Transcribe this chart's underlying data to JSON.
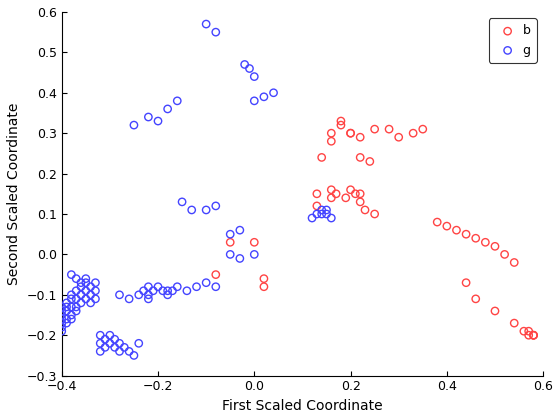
{
  "title": "",
  "xlabel": "First Scaled Coordinate",
  "ylabel": "Second Scaled Coordinate",
  "xlim": [
    -0.4,
    0.6
  ],
  "ylim": [
    -0.3,
    0.6
  ],
  "xticks": [
    -0.4,
    -0.2,
    0.0,
    0.2,
    0.4,
    0.6
  ],
  "yticks": [
    -0.3,
    -0.2,
    -0.1,
    0.0,
    0.1,
    0.2,
    0.3,
    0.4,
    0.5,
    0.6
  ],
  "color_b": "#FF4444",
  "color_g": "#4444FF",
  "marker_size": 28,
  "b_x": [
    -0.05,
    -0.08,
    0.0,
    0.02,
    0.02,
    0.13,
    0.13,
    0.16,
    0.16,
    0.17,
    0.19,
    0.2,
    0.21,
    0.22,
    0.22,
    0.23,
    0.25,
    0.16,
    0.18,
    0.2,
    0.22,
    0.25,
    0.28,
    0.14,
    0.16,
    0.18,
    0.2,
    0.22,
    0.24,
    0.3,
    0.33,
    0.35,
    0.38,
    0.4,
    0.42,
    0.44,
    0.46,
    0.48,
    0.5,
    0.52,
    0.54,
    0.44,
    0.46,
    0.5,
    0.54,
    0.56,
    0.57,
    0.57,
    0.58,
    0.58,
    0.58
  ],
  "b_y": [
    0.03,
    -0.05,
    0.03,
    -0.06,
    -0.08,
    0.12,
    0.15,
    0.16,
    0.14,
    0.15,
    0.14,
    0.16,
    0.15,
    0.13,
    0.15,
    0.11,
    0.1,
    0.3,
    0.32,
    0.3,
    0.29,
    0.31,
    0.31,
    0.24,
    0.28,
    0.33,
    0.3,
    0.24,
    0.23,
    0.29,
    0.3,
    0.31,
    0.08,
    0.07,
    0.06,
    0.05,
    0.04,
    0.03,
    0.02,
    0.0,
    -0.02,
    -0.07,
    -0.11,
    -0.14,
    -0.17,
    -0.19,
    -0.2,
    -0.19,
    -0.2,
    -0.2,
    -0.2
  ],
  "g_x": [
    -0.4,
    -0.4,
    -0.4,
    -0.4,
    -0.4,
    -0.4,
    -0.4,
    -0.39,
    -0.39,
    -0.39,
    -0.39,
    -0.39,
    -0.38,
    -0.38,
    -0.38,
    -0.38,
    -0.38,
    -0.37,
    -0.37,
    -0.37,
    -0.37,
    -0.36,
    -0.36,
    -0.36,
    -0.35,
    -0.35,
    -0.35,
    -0.34,
    -0.34,
    -0.34,
    -0.33,
    -0.33,
    -0.33,
    -0.32,
    -0.32,
    -0.32,
    -0.31,
    -0.31,
    -0.3,
    -0.3,
    -0.29,
    -0.29,
    -0.28,
    -0.28,
    -0.27,
    -0.26,
    -0.25,
    -0.24,
    -0.23,
    -0.22,
    -0.22,
    -0.21,
    -0.2,
    -0.19,
    -0.18,
    -0.17,
    -0.38,
    -0.37,
    -0.36,
    -0.35,
    -0.28,
    -0.26,
    -0.24,
    -0.22,
    -0.18,
    -0.16,
    -0.14,
    -0.12,
    -0.1,
    -0.08,
    -0.05,
    -0.03,
    0.0,
    0.12,
    0.13,
    0.14,
    0.15,
    0.16,
    0.15,
    0.14,
    -0.25,
    -0.22,
    -0.2,
    -0.1,
    -0.08,
    0.0,
    0.02,
    0.04,
    -0.15,
    -0.13,
    -0.18,
    -0.16,
    -0.05,
    -0.03,
    0.0,
    -0.01,
    -0.02,
    -0.08,
    -0.1
  ],
  "g_y": [
    -0.13,
    -0.14,
    -0.15,
    -0.16,
    -0.17,
    -0.18,
    -0.19,
    -0.12,
    -0.13,
    -0.14,
    -0.16,
    -0.17,
    -0.1,
    -0.11,
    -0.13,
    -0.15,
    -0.16,
    -0.09,
    -0.11,
    -0.13,
    -0.14,
    -0.08,
    -0.1,
    -0.12,
    -0.07,
    -0.09,
    -0.11,
    -0.08,
    -0.1,
    -0.12,
    -0.07,
    -0.09,
    -0.11,
    -0.2,
    -0.22,
    -0.24,
    -0.21,
    -0.23,
    -0.2,
    -0.22,
    -0.21,
    -0.23,
    -0.22,
    -0.24,
    -0.23,
    -0.24,
    -0.25,
    -0.22,
    -0.09,
    -0.08,
    -0.1,
    -0.09,
    -0.08,
    -0.09,
    -0.1,
    -0.09,
    -0.05,
    -0.06,
    -0.07,
    -0.06,
    -0.1,
    -0.11,
    -0.1,
    -0.11,
    -0.09,
    -0.08,
    -0.09,
    -0.08,
    -0.07,
    -0.08,
    0.0,
    -0.01,
    0.0,
    0.09,
    0.1,
    0.11,
    0.1,
    0.09,
    0.11,
    0.1,
    0.32,
    0.34,
    0.33,
    0.11,
    0.12,
    0.38,
    0.39,
    0.4,
    0.13,
    0.11,
    0.36,
    0.38,
    0.05,
    0.06,
    0.44,
    0.46,
    0.47,
    0.55,
    0.57
  ]
}
